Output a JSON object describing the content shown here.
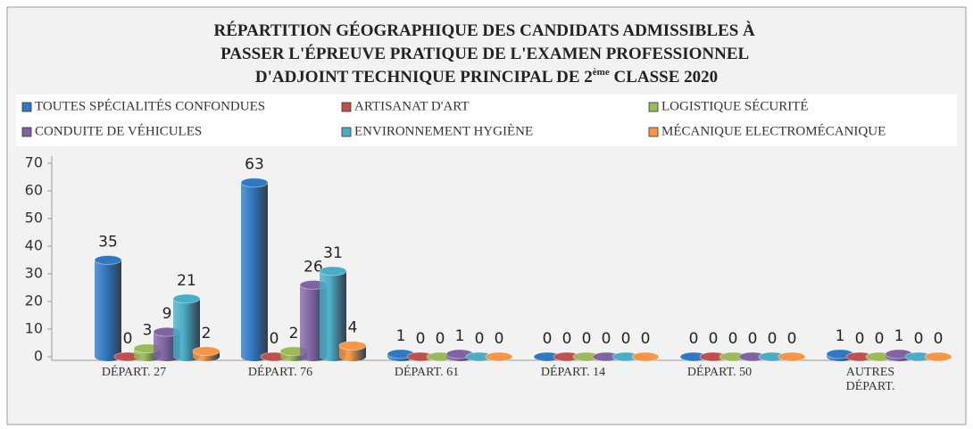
{
  "chart_data": {
    "type": "bar3d",
    "title": [
      "RÉPARTITION GÉOGRAPHIQUE DES CANDIDATS  ADMISSIBLES  À",
      "PASSER  L'ÉPREUVE PRATIQUE DE L'EXAMEN PROFESSIONNEL",
      "D'ADJOINT TECHNIQUE PRINCIPAL DE 2",
      "ème",
      " CLASSE 2020"
    ],
    "categories": [
      "DÉPART. 27",
      "DÉPART. 76",
      "DÉPART. 61",
      "DÉPART. 14",
      "DÉPART. 50",
      "AUTRES DÉPART."
    ],
    "series": [
      {
        "name": "TOUTES SPÉCIALITÉS CONFONDUES",
        "color": "#2f78c4",
        "values": [
          35,
          63,
          1,
          0,
          0,
          1
        ]
      },
      {
        "name": "ARTISANAT D'ART",
        "color": "#c0504d",
        "values": [
          0,
          0,
          0,
          0,
          0,
          0
        ]
      },
      {
        "name": "LOGISTIQUE SÉCURITÉ",
        "color": "#9bbb59",
        "values": [
          3,
          2,
          0,
          0,
          0,
          0
        ]
      },
      {
        "name": "CONDUITE DE VÉHICULES",
        "color": "#8064a2",
        "values": [
          9,
          26,
          1,
          0,
          0,
          1
        ]
      },
      {
        "name": "ENVIRONNEMENT HYGIÈNE",
        "color": "#4bacc6",
        "values": [
          21,
          31,
          0,
          0,
          0,
          0
        ]
      },
      {
        "name": "MÉCANIQUE ELECTROMÉCANIQUE",
        "color": "#f79646",
        "values": [
          2,
          4,
          0,
          0,
          0,
          0
        ]
      }
    ],
    "ylim": [
      0,
      70
    ],
    "yticks": [
      0,
      10,
      20,
      30,
      40,
      50,
      60,
      70
    ],
    "legend": "top"
  }
}
